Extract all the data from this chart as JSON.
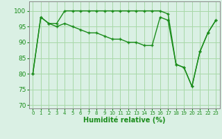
{
  "line1": {
    "x": [
      0,
      1,
      2,
      3,
      4,
      5,
      6,
      7,
      8,
      9,
      10,
      11,
      12,
      13,
      14,
      15,
      16,
      17,
      18,
      19,
      20,
      21,
      22,
      23
    ],
    "y": [
      80,
      98,
      96,
      96,
      100,
      100,
      100,
      100,
      100,
      100,
      100,
      100,
      100,
      100,
      100,
      100,
      100,
      99,
      83,
      82,
      76,
      87,
      93,
      97
    ],
    "color": "#1a8c1a",
    "linewidth": 1.0,
    "marker": "+"
  },
  "line2": {
    "x": [
      0,
      1,
      2,
      3,
      4,
      5,
      6,
      7,
      8,
      9,
      10,
      11,
      12,
      13,
      14,
      15,
      16,
      17,
      18,
      19,
      20,
      21,
      22,
      23
    ],
    "y": [
      80,
      98,
      96,
      95,
      96,
      95,
      94,
      93,
      93,
      92,
      91,
      91,
      90,
      90,
      89,
      89,
      98,
      97,
      83,
      82,
      76,
      87,
      93,
      97
    ],
    "color": "#1a8c1a",
    "linewidth": 1.0,
    "marker": "+"
  },
  "xlabel": "Humidité relative (%)",
  "xlim": [
    -0.5,
    23.5
  ],
  "ylim": [
    69,
    103
  ],
  "yticks": [
    70,
    75,
    80,
    85,
    90,
    95,
    100
  ],
  "xticks": [
    0,
    1,
    2,
    3,
    4,
    5,
    6,
    7,
    8,
    9,
    10,
    11,
    12,
    13,
    14,
    15,
    16,
    17,
    18,
    19,
    20,
    21,
    22,
    23
  ],
  "grid_color": "#a8d8a8",
  "bg_color": "#daf0e4",
  "tick_color": "#1a8c1a",
  "label_color": "#1a8c1a",
  "axis_color": "#888888",
  "xlabel_fontsize": 7.0,
  "ytick_fontsize": 6.5,
  "xtick_fontsize": 5.0
}
